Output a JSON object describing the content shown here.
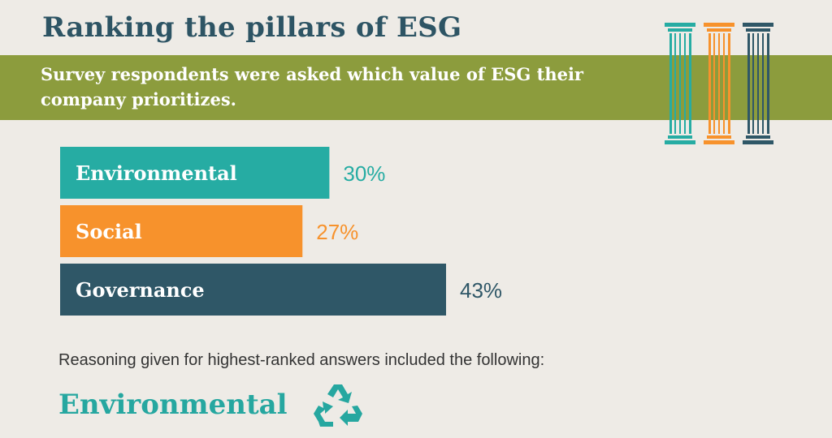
{
  "header": {
    "title": "Ranking the pillars of ESG",
    "subtitle": "Survey respondents were asked which value of ESG their company prioritizes."
  },
  "chart_data": {
    "type": "bar",
    "orientation": "horizontal",
    "categories": [
      "Environmental",
      "Social",
      "Governance"
    ],
    "values": [
      30,
      27,
      43
    ],
    "value_labels": [
      "30%",
      "27%",
      "43%"
    ],
    "unit": "%",
    "colors": [
      "#26aca3",
      "#f7922c",
      "#2f5767"
    ],
    "xlim": [
      0,
      43
    ],
    "grid": false,
    "legend": "none"
  },
  "decor": {
    "pillar_colors": [
      "#26aca3",
      "#f7922c",
      "#2f5767"
    ],
    "pillar_icon": "column-icon",
    "recycle_icon": "recycle-icon",
    "recycle_color": "#26a7a0"
  },
  "body": {
    "reasoning_text": "Reasoning given for highest-ranked answers included the following:",
    "section_heading": "Environmental"
  }
}
